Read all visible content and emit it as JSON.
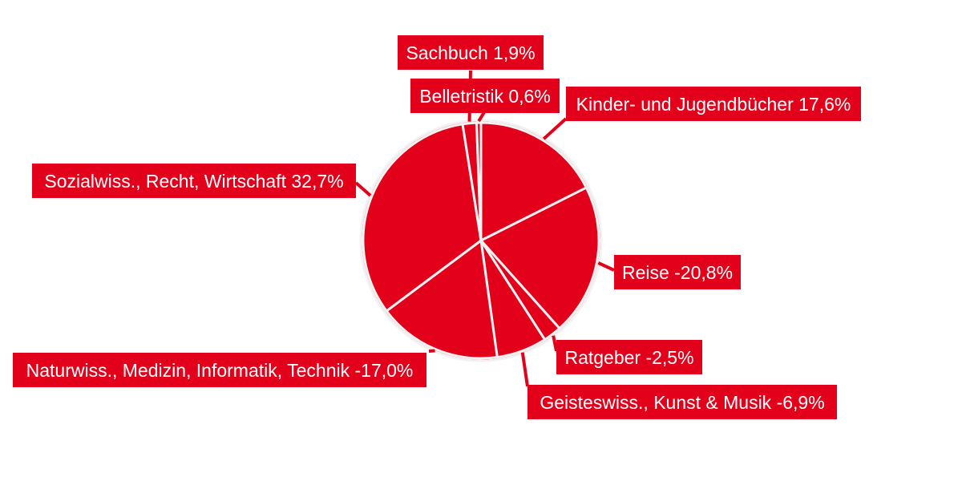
{
  "colors": {
    "slice": "#e2001a",
    "border": "#f2f2f2",
    "label_bg": "#e2001a",
    "label_text": "#ffffff",
    "leader": "#e2001a"
  },
  "chart_data": {
    "type": "pie",
    "unit": "%",
    "legend": "none",
    "slices": [
      {
        "category": "Kinder- und Jugendbücher",
        "value": 17.6,
        "label": "Kinder- und Jugendbücher 17,6%"
      },
      {
        "category": "Reise",
        "value": -20.8,
        "label": "Reise -20,8%"
      },
      {
        "category": "Ratgeber",
        "value": -2.5,
        "label": "Ratgeber -2,5%"
      },
      {
        "category": "Geisteswiss., Kunst & Musik",
        "value": -6.9,
        "label": "Geisteswiss., Kunst & Musik -6,9%"
      },
      {
        "category": "Naturwiss., Medizin, Informatik, Technik",
        "value": -17.0,
        "label": "Naturwiss., Medizin, Informatik, Technik -17,0%"
      },
      {
        "category": "Sozialwiss., Recht, Wirtschaft",
        "value": 32.7,
        "label": "Sozialwiss., Recht, Wirtschaft 32,7%"
      },
      {
        "category": "Sachbuch",
        "value": 1.9,
        "label": "Sachbuch 1,9%"
      },
      {
        "category": "Belletristik",
        "value": 0.6,
        "label": "Belletristik 0,6%"
      }
    ]
  }
}
